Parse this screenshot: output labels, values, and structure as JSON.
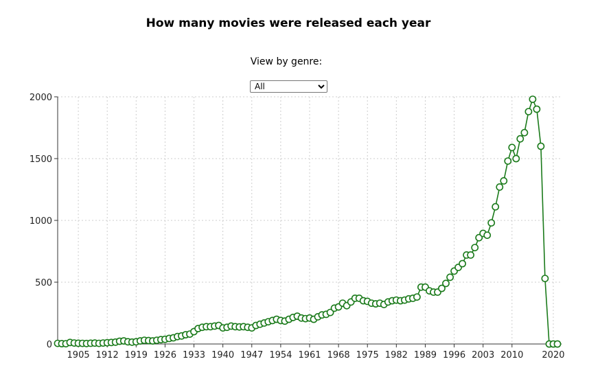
{
  "header": {
    "title": "How many movies were released each year",
    "genre_label": "View by genre:",
    "genre_selected": "All"
  },
  "chart_data": {
    "type": "line",
    "title": "How many movies were released each year",
    "xlabel": "",
    "ylabel": "",
    "xlim": [
      1900,
      2022
    ],
    "ylim": [
      0,
      2000
    ],
    "x_ticks": [
      1905,
      1912,
      1919,
      1926,
      1933,
      1940,
      1947,
      1954,
      1961,
      1968,
      1975,
      1982,
      1989,
      1996,
      2003,
      2010,
      2020
    ],
    "y_ticks": [
      0,
      500,
      1000,
      1500,
      2000
    ],
    "grid": true,
    "colors": {
      "line": "#1a7a1a",
      "marker_fill": "#ffffff",
      "grid": "#cccccc"
    },
    "series": [
      {
        "x": [
          1900,
          1901,
          1902,
          1903,
          1904,
          1905,
          1906,
          1907,
          1908,
          1909,
          1910,
          1911,
          1912,
          1913,
          1914,
          1915,
          1916,
          1917,
          1918,
          1919,
          1920,
          1921,
          1922,
          1923,
          1924,
          1925,
          1926,
          1927,
          1928,
          1929,
          1930,
          1931,
          1932,
          1933,
          1934,
          1935,
          1936,
          1937,
          1938,
          1939,
          1940,
          1941,
          1942,
          1943,
          1944,
          1945,
          1946,
          1947,
          1948,
          1949,
          1950,
          1951,
          1952,
          1953,
          1954,
          1955,
          1956,
          1957,
          1958,
          1959,
          1960,
          1961,
          1962,
          1963,
          1964,
          1965,
          1966,
          1967,
          1968,
          1969,
          1970,
          1971,
          1972,
          1973,
          1974,
          1975,
          1976,
          1977,
          1978,
          1979,
          1980,
          1981,
          1982,
          1983,
          1984,
          1985,
          1986,
          1987,
          1988,
          1989,
          1990,
          1991,
          1992,
          1993,
          1994,
          1995,
          1996,
          1997,
          1998,
          1999,
          2000,
          2001,
          2002,
          2003,
          2004,
          2005,
          2006,
          2007,
          2008,
          2009,
          2010,
          2011,
          2012,
          2013,
          2014,
          2015,
          2016,
          2017,
          2018,
          2019,
          2020,
          2021
        ],
        "values": [
          5,
          3,
          2,
          12,
          8,
          6,
          5,
          4,
          6,
          7,
          5,
          8,
          10,
          12,
          15,
          22,
          25,
          18,
          15,
          18,
          25,
          30,
          28,
          25,
          30,
          35,
          38,
          45,
          50,
          60,
          65,
          75,
          80,
          100,
          125,
          135,
          140,
          140,
          145,
          150,
          130,
          135,
          145,
          140,
          138,
          140,
          135,
          130,
          150,
          160,
          170,
          180,
          190,
          200,
          190,
          185,
          200,
          215,
          225,
          210,
          205,
          210,
          200,
          220,
          235,
          240,
          255,
          290,
          300,
          330,
          310,
          340,
          370,
          370,
          350,
          345,
          330,
          325,
          330,
          320,
          340,
          350,
          355,
          350,
          355,
          365,
          370,
          380,
          460,
          460,
          430,
          420,
          420,
          450,
          490,
          540,
          590,
          620,
          650,
          720,
          720,
          780,
          860,
          895,
          880,
          980,
          1110,
          1270,
          1320,
          1480,
          1590,
          1500,
          1660,
          1710,
          1880,
          1980,
          1900,
          1600,
          530,
          0,
          0,
          0
        ]
      }
    ]
  }
}
